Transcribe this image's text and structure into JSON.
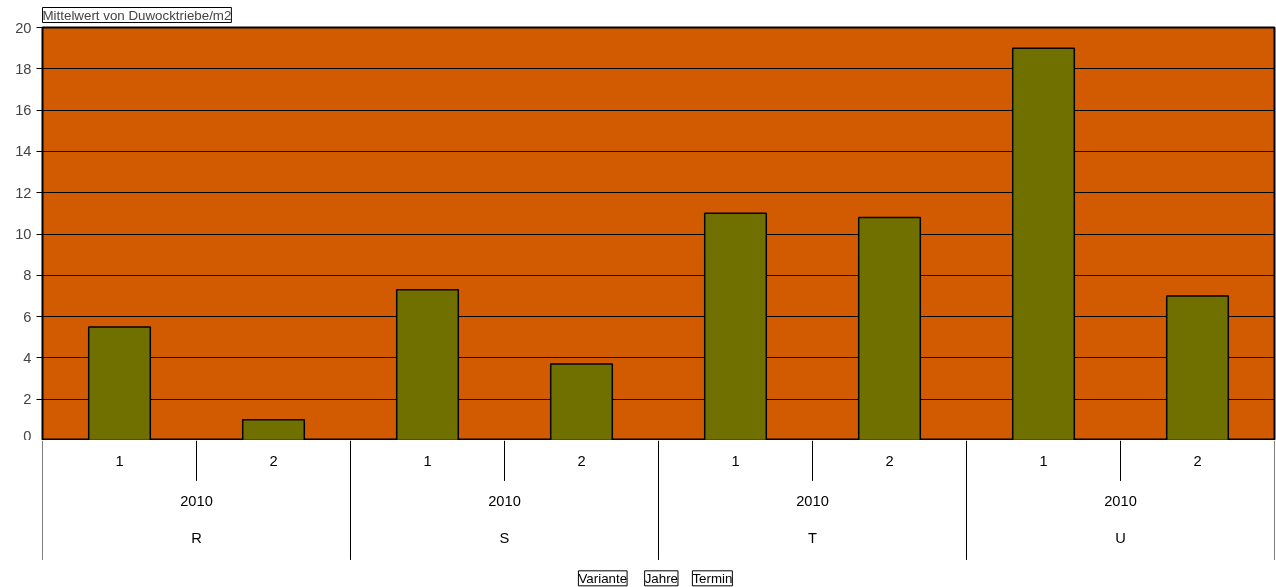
{
  "chart_data": {
    "type": "bar",
    "title": "Mittelwert von Duwocktriebe/m2",
    "categories": [
      "1",
      "2",
      "1",
      "2",
      "1",
      "2",
      "1",
      "2"
    ],
    "values": [
      5.5,
      1.0,
      7.3,
      3.7,
      11.0,
      10.8,
      19.0,
      7.0
    ],
    "color": "#707000",
    "ylim": [
      0,
      20
    ],
    "yticks": [
      0,
      2,
      4,
      6,
      8,
      10,
      12,
      14,
      16,
      18,
      20
    ],
    "grid": "y",
    "annotations": [
      "2010",
      "R",
      "2010",
      "S",
      "2010",
      "T",
      "2010",
      "U",
      "Variante",
      "Jahre",
      "Termin"
    ]
  }
}
